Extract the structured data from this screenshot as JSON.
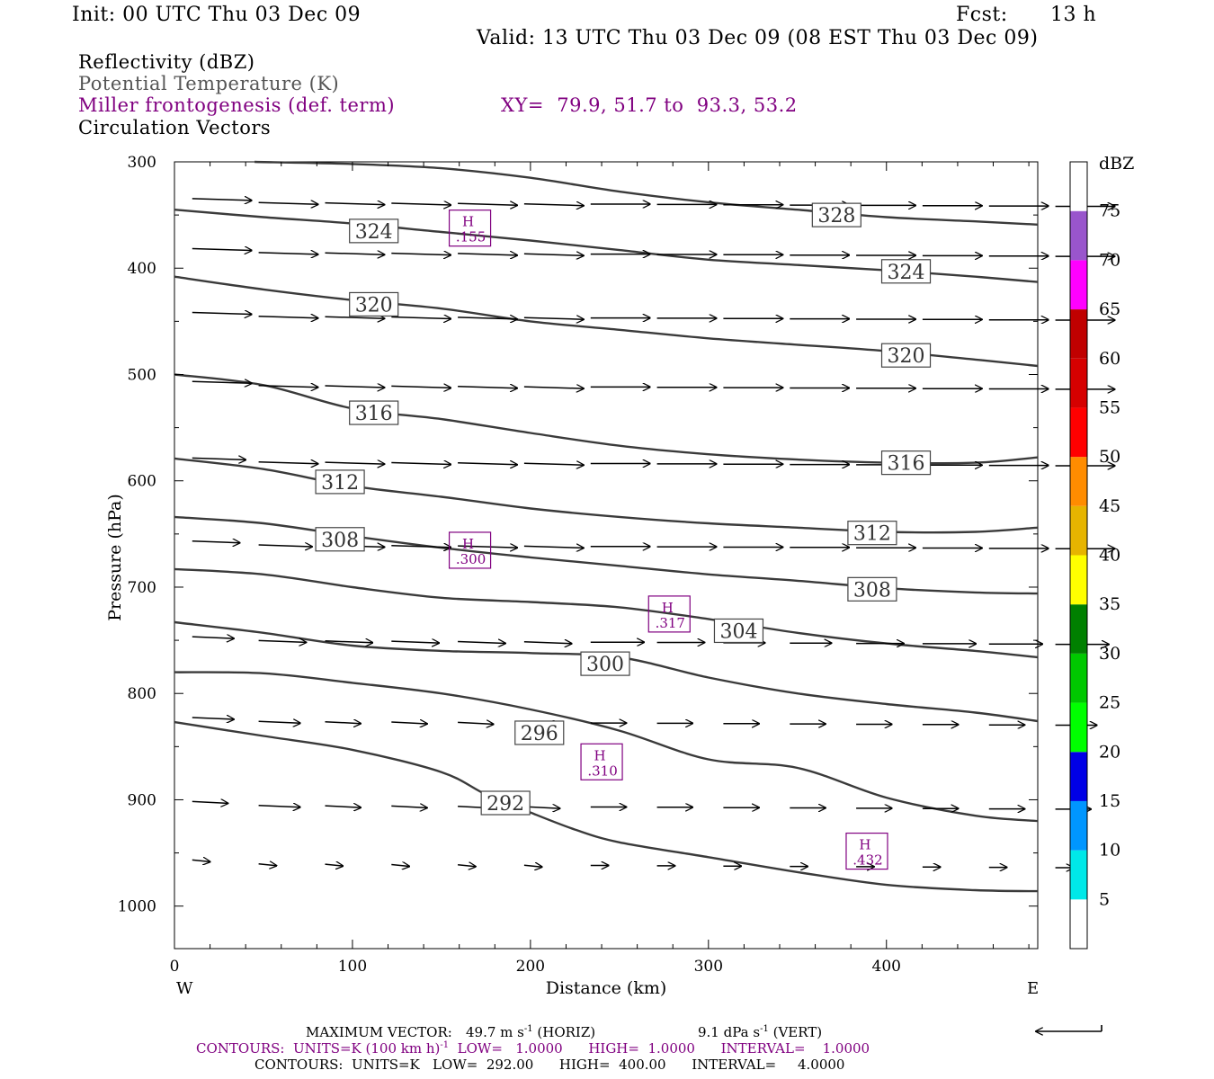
{
  "header": {
    "init": "Init: 00 UTC Thu 03 Dec 09",
    "fcst_label": "Fcst:",
    "fcst_value": "13 h",
    "valid": "Valid: 13 UTC Thu 03 Dec 09 (08 EST Thu 03 Dec 09)"
  },
  "fields": {
    "reflectivity": "Reflectivity (dBZ)",
    "theta": "Potential Temperature (K)",
    "frontogenesis": "Miller frontogenesis (def. term)",
    "xy": "XY=  79.9, 51.7 to  93.3, 53.2",
    "vectors": "Circulation Vectors"
  },
  "colors": {
    "purple": "#800080",
    "contour": "#3a3a3a"
  },
  "chart_data": {
    "type": "line",
    "xlabel": "Distance (km)",
    "ylabel": "Pressure (hPa)",
    "xlim": [
      0,
      485
    ],
    "ylim": [
      1040,
      300
    ],
    "x_ticks": [
      0,
      100,
      200,
      300,
      400
    ],
    "y_ticks": [
      300,
      400,
      500,
      600,
      700,
      800,
      900,
      1000
    ],
    "west_label": "W",
    "east_label": "E",
    "colorbar": {
      "label": "dBZ",
      "ticks": [
        "5",
        "10",
        "15",
        "20",
        "25",
        "30",
        "35",
        "40",
        "45",
        "50",
        "55",
        "60",
        "65",
        "70",
        "75"
      ],
      "colors": [
        "#ffffff",
        "#00e8e8",
        "#0096ff",
        "#0000e6",
        "#00ff00",
        "#00c800",
        "#008000",
        "#ffff00",
        "#e6b400",
        "#ff8c00",
        "#ff0000",
        "#d60000",
        "#c00000",
        "#ff00ff",
        "#9955cc",
        "#ffffff"
      ]
    },
    "isentropes": [
      {
        "name": "292",
        "points": [
          [
            0,
            827
          ],
          [
            50,
            840
          ],
          [
            100,
            853
          ],
          [
            150,
            874
          ],
          [
            175,
            895
          ],
          [
            200,
            912
          ],
          [
            225,
            928
          ],
          [
            250,
            940
          ],
          [
            300,
            954
          ],
          [
            350,
            968
          ],
          [
            400,
            980
          ],
          [
            450,
            985
          ],
          [
            485,
            986
          ]
        ]
      },
      {
        "name": "296",
        "points": [
          [
            0,
            780
          ],
          [
            50,
            781
          ],
          [
            100,
            790
          ],
          [
            150,
            800
          ],
          [
            200,
            815
          ],
          [
            250,
            835
          ],
          [
            300,
            862
          ],
          [
            350,
            870
          ],
          [
            400,
            898
          ],
          [
            450,
            915
          ],
          [
            485,
            920
          ]
        ]
      },
      {
        "name": "300",
        "points": [
          [
            0,
            733
          ],
          [
            50,
            743
          ],
          [
            100,
            755
          ],
          [
            150,
            760
          ],
          [
            200,
            762
          ],
          [
            250,
            766
          ],
          [
            300,
            785
          ],
          [
            350,
            800
          ],
          [
            400,
            810
          ],
          [
            450,
            818
          ],
          [
            485,
            826
          ]
        ]
      },
      {
        "name": "304",
        "points": [
          [
            0,
            683
          ],
          [
            50,
            688
          ],
          [
            100,
            700
          ],
          [
            150,
            710
          ],
          [
            200,
            714
          ],
          [
            250,
            719
          ],
          [
            300,
            730
          ],
          [
            350,
            743
          ],
          [
            400,
            753
          ],
          [
            450,
            760
          ],
          [
            485,
            766
          ]
        ]
      },
      {
        "name": "308",
        "points": [
          [
            0,
            634
          ],
          [
            50,
            640
          ],
          [
            100,
            652
          ],
          [
            150,
            663
          ],
          [
            200,
            672
          ],
          [
            250,
            680
          ],
          [
            300,
            688
          ],
          [
            350,
            694
          ],
          [
            400,
            701
          ],
          [
            450,
            705
          ],
          [
            485,
            706
          ]
        ]
      },
      {
        "name": "312",
        "points": [
          [
            0,
            579
          ],
          [
            50,
            589
          ],
          [
            100,
            605
          ],
          [
            150,
            615
          ],
          [
            200,
            626
          ],
          [
            250,
            634
          ],
          [
            300,
            640
          ],
          [
            350,
            644
          ],
          [
            400,
            648
          ],
          [
            450,
            648
          ],
          [
            485,
            644
          ]
        ]
      },
      {
        "name": "316",
        "points": [
          [
            0,
            500
          ],
          [
            50,
            510
          ],
          [
            100,
            532
          ],
          [
            150,
            542
          ],
          [
            200,
            555
          ],
          [
            250,
            567
          ],
          [
            300,
            575
          ],
          [
            350,
            580
          ],
          [
            400,
            583
          ],
          [
            450,
            583
          ],
          [
            485,
            578
          ]
        ]
      },
      {
        "name": "320",
        "points": [
          [
            0,
            408
          ],
          [
            50,
            420
          ],
          [
            100,
            430
          ],
          [
            150,
            438
          ],
          [
            200,
            450
          ],
          [
            250,
            458
          ],
          [
            300,
            466
          ],
          [
            350,
            472
          ],
          [
            400,
            478
          ],
          [
            450,
            486
          ],
          [
            485,
            492
          ]
        ]
      },
      {
        "name": "324",
        "points": [
          [
            0,
            345
          ],
          [
            50,
            352
          ],
          [
            100,
            358
          ],
          [
            150,
            366
          ],
          [
            200,
            374
          ],
          [
            250,
            383
          ],
          [
            300,
            392
          ],
          [
            350,
            397
          ],
          [
            400,
            402
          ],
          [
            450,
            408
          ],
          [
            485,
            413
          ]
        ]
      },
      {
        "name": "328",
        "points": [
          [
            45,
            300
          ],
          [
            100,
            302
          ],
          [
            150,
            306
          ],
          [
            200,
            315
          ],
          [
            250,
            328
          ],
          [
            300,
            338
          ],
          [
            350,
            345
          ],
          [
            400,
            352
          ],
          [
            450,
            356
          ],
          [
            485,
            359
          ]
        ]
      }
    ],
    "contour_labels": [
      {
        "text": "324",
        "x": 112,
        "y": 365
      },
      {
        "text": "328",
        "x": 372,
        "y": 350
      },
      {
        "text": "324",
        "x": 411,
        "y": 403
      },
      {
        "text": "320",
        "x": 112,
        "y": 434
      },
      {
        "text": "320",
        "x": 411,
        "y": 482
      },
      {
        "text": "316",
        "x": 112,
        "y": 536
      },
      {
        "text": "316",
        "x": 411,
        "y": 583
      },
      {
        "text": "312",
        "x": 93,
        "y": 601
      },
      {
        "text": "312",
        "x": 392,
        "y": 649
      },
      {
        "text": "308",
        "x": 93,
        "y": 655
      },
      {
        "text": "308",
        "x": 392,
        "y": 702
      },
      {
        "text": "304",
        "x": 317,
        "y": 741
      },
      {
        "text": "300",
        "x": 242,
        "y": 772
      },
      {
        "text": "296",
        "x": 205,
        "y": 837
      },
      {
        "text": "292",
        "x": 186,
        "y": 903
      }
    ],
    "frontogenesis_maxima": [
      {
        "letter": "H",
        "value": ".155",
        "x": 166,
        "y": 364
      },
      {
        "letter": "H",
        "value": ".300",
        "x": 166,
        "y": 667
      },
      {
        "letter": "H",
        "value": ".317",
        "x": 278,
        "y": 727
      },
      {
        "letter": "H",
        "value": ".310",
        "x": 240,
        "y": 866
      },
      {
        "letter": "H",
        "value": ".432",
        "x": 389,
        "y": 950
      }
    ],
    "vector_rows": [
      {
        "p": 338,
        "u": [
          1.0,
          1.0,
          1.0,
          1.0,
          1.0,
          1.0,
          1.0,
          1.0,
          1.0,
          1.0,
          1.0,
          1.0,
          1.0,
          1.0
        ]
      },
      {
        "p": 385,
        "u": [
          1.0,
          1.0,
          1.0,
          1.0,
          1.0,
          1.0,
          1.0,
          1.0,
          1.0,
          1.0,
          1.0,
          1.0,
          1.0,
          1.0
        ]
      },
      {
        "p": 445,
        "u": [
          1.0,
          1.0,
          1.0,
          1.0,
          1.0,
          1.0,
          1.0,
          1.0,
          1.0,
          1.0,
          1.0,
          1.0,
          1.0,
          1.0
        ]
      },
      {
        "p": 510,
        "u": [
          1.0,
          1.0,
          1.0,
          1.0,
          1.0,
          1.0,
          1.0,
          1.0,
          1.0,
          1.0,
          1.0,
          1.0,
          1.0,
          1.0
        ]
      },
      {
        "p": 582,
        "u": [
          0.9,
          1.0,
          1.0,
          1.0,
          1.0,
          1.0,
          1.0,
          1.0,
          1.0,
          1.0,
          1.0,
          1.0,
          1.0,
          1.0
        ]
      },
      {
        "p": 660,
        "u": [
          0.8,
          0.9,
          1.0,
          1.0,
          1.0,
          1.0,
          1.0,
          1.0,
          1.0,
          1.0,
          1.0,
          1.0,
          1.0,
          1.0
        ]
      },
      {
        "p": 750,
        "u": [
          0.7,
          0.8,
          0.8,
          0.8,
          0.8,
          0.8,
          0.9,
          0.8,
          0.7,
          0.7,
          0.8,
          0.9,
          0.9,
          0.9
        ]
      },
      {
        "p": 826,
        "u": [
          0.7,
          0.7,
          0.6,
          0.6,
          0.6,
          0.6,
          0.6,
          0.6,
          0.6,
          0.6,
          0.6,
          0.6,
          0.6,
          0.7
        ]
      },
      {
        "p": 905,
        "u": [
          0.6,
          0.7,
          0.6,
          0.6,
          0.6,
          0.6,
          0.6,
          0.6,
          0.6,
          0.6,
          0.6,
          0.6,
          0.6,
          0.6
        ]
      },
      {
        "p": 960,
        "u": [
          0.3,
          0.3,
          0.3,
          0.3,
          0.3,
          0.3,
          0.3,
          0.3,
          0.3,
          0.3,
          0.3,
          0.3,
          0.3,
          0.3
        ]
      }
    ]
  },
  "footer": {
    "max_vector_label": "MAXIMUM VECTOR:",
    "max_vector_horiz": "49.7 m s",
    "max_vector_horiz_unit": "(HORIZ)",
    "max_vector_vert": "9.1 dPa s",
    "max_vector_vert_unit": "(VERT)",
    "contours_fg_a": "CONTOURS:  UNITS=K (100 km h)",
    "contours_fg_b": "LOW=   1.0000      HIGH=  1.0000      INTERVAL=    1.0000",
    "contours_theta": "CONTOURS:  UNITS=K   LOW=  292.00      HIGH=  400.00      INTERVAL=     4.0000",
    "exponent": "-1"
  }
}
